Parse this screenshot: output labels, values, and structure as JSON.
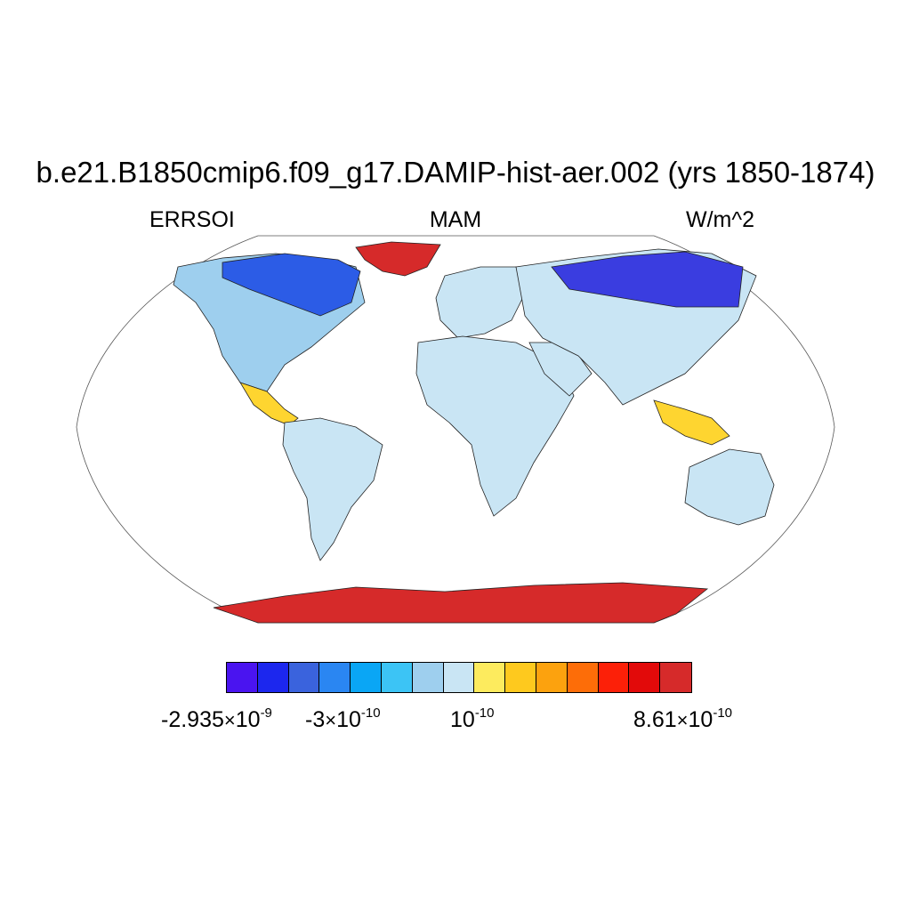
{
  "title": "b.e21.B1850cmip6.f09_g17.DAMIP-hist-aer.002 (yrs 1850-1874)",
  "left_label": "ERRSOI",
  "center_label": "MAM",
  "right_label": "W/m^2",
  "map": {
    "projection": "Robinson",
    "ocean_fill": "#ffffff",
    "regions": [
      {
        "name": "north-america",
        "color": "#9ecfee"
      },
      {
        "name": "north-canada",
        "color": "#2c5ce6"
      },
      {
        "name": "central-america",
        "color": "#fed530"
      },
      {
        "name": "south-america",
        "color": "#c9e5f4"
      },
      {
        "name": "greenland",
        "color": "#d62a2a"
      },
      {
        "name": "europe",
        "color": "#c9e5f4"
      },
      {
        "name": "africa",
        "color": "#c9e5f4"
      },
      {
        "name": "arabia",
        "color": "#c9e5f4"
      },
      {
        "name": "asia",
        "color": "#c9e5f4"
      },
      {
        "name": "siberia",
        "color": "#3a3de0"
      },
      {
        "name": "southeast-asia",
        "color": "#fed530"
      },
      {
        "name": "australia",
        "color": "#c9e5f4"
      },
      {
        "name": "antarctica",
        "color": "#d62a2a"
      }
    ]
  },
  "colorbar": {
    "colors": [
      "#4a14f0",
      "#1c27ee",
      "#3a63dd",
      "#2a86f2",
      "#0aa6f5",
      "#3cc4f5",
      "#9ecfee",
      "#c9e5f4",
      "#fdeb5e",
      "#fec91e",
      "#fca20e",
      "#fd6d08",
      "#fc2008",
      "#e20a0a",
      "#d62a2a"
    ],
    "labels": [
      {
        "mant": "-2.935",
        "exp": "-9"
      },
      {
        "mant": "-3",
        "exp": "-10"
      },
      {
        "mant": "",
        "exp": "-10"
      },
      {
        "mant": "8.61",
        "exp": "-10"
      }
    ]
  }
}
